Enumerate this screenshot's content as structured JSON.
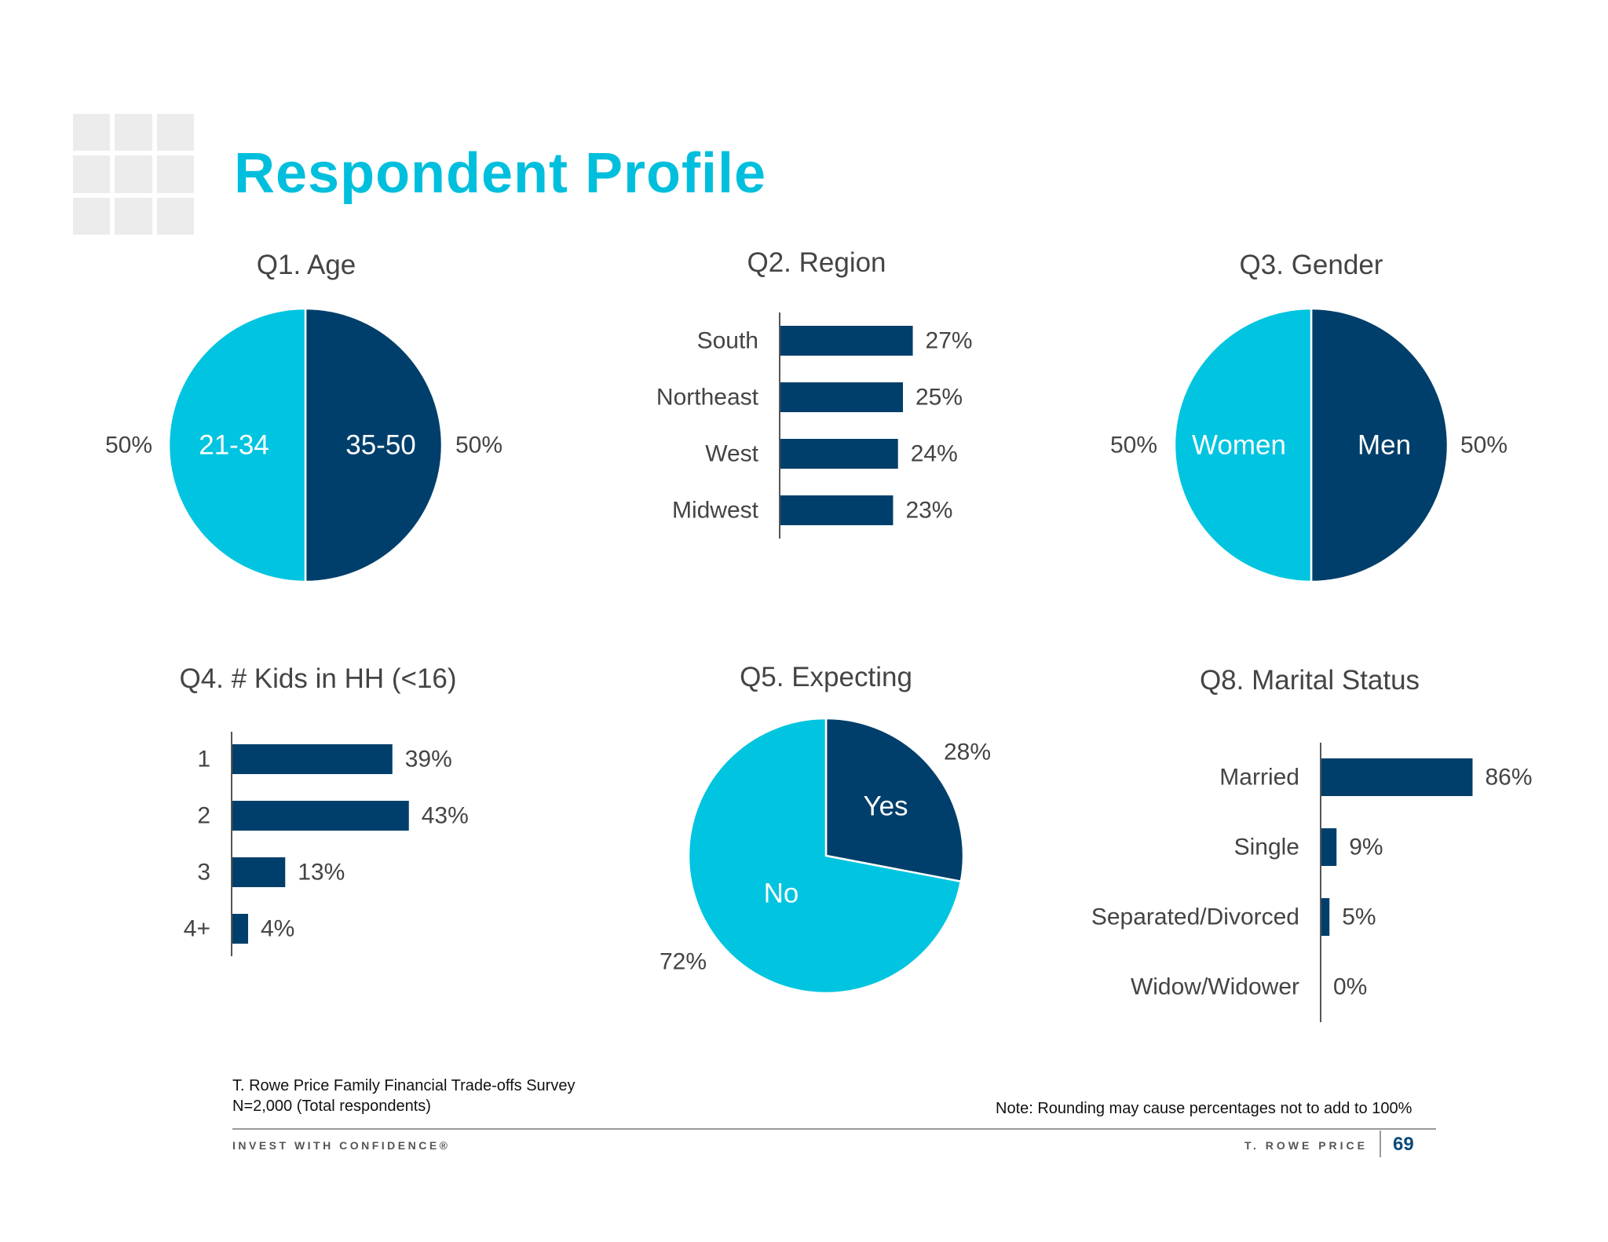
{
  "header": {
    "title": "Respondent Profile"
  },
  "colors": {
    "light": "#00c4e0",
    "dark": "#003f6b",
    "title": "#00bfdd"
  },
  "chart_data": [
    {
      "id": "q1",
      "type": "pie",
      "title": "Q1. Age",
      "slices": [
        {
          "label": "35-50",
          "value": 50,
          "value_label": "50%",
          "color": "#003f6b"
        },
        {
          "label": "21-34",
          "value": 50,
          "value_label": "50%",
          "color": "#00c4e0"
        }
      ]
    },
    {
      "id": "q2",
      "type": "bar",
      "orientation": "horizontal",
      "title": "Q2. Region",
      "categories": [
        "South",
        "Northeast",
        "West",
        "Midwest"
      ],
      "values": [
        27,
        25,
        24,
        23
      ],
      "value_labels": [
        "27%",
        "25%",
        "24%",
        "23%"
      ],
      "xlim": [
        0,
        100
      ],
      "grid": false
    },
    {
      "id": "q3",
      "type": "pie",
      "title": "Q3. Gender",
      "slices": [
        {
          "label": "Men",
          "value": 50,
          "value_label": "50%",
          "color": "#003f6b"
        },
        {
          "label": "Women",
          "value": 50,
          "value_label": "50%",
          "color": "#00c4e0"
        }
      ]
    },
    {
      "id": "q4",
      "type": "bar",
      "orientation": "horizontal",
      "title": "Q4. # Kids in HH (<16)",
      "categories": [
        "1",
        "2",
        "3",
        "4+"
      ],
      "values": [
        39,
        43,
        13,
        4
      ],
      "value_labels": [
        "39%",
        "43%",
        "13%",
        "4%"
      ],
      "xlim": [
        0,
        100
      ],
      "grid": false
    },
    {
      "id": "q5",
      "type": "pie",
      "title": "Q5. Expecting",
      "slices": [
        {
          "label": "Yes",
          "value": 28,
          "value_label": "28%",
          "color": "#003f6b"
        },
        {
          "label": "No",
          "value": 72,
          "value_label": "72%",
          "color": "#00c4e0"
        }
      ]
    },
    {
      "id": "q8",
      "type": "bar",
      "orientation": "horizontal",
      "title": "Q8. Marital Status",
      "categories": [
        "Married",
        "Single",
        "Separated/Divorced",
        "Widow/Widower"
      ],
      "values": [
        86,
        9,
        5,
        0
      ],
      "value_labels": [
        "86%",
        "9%",
        "5%",
        "0%"
      ],
      "xlim": [
        0,
        100
      ],
      "grid": false
    }
  ],
  "footer": {
    "source": "T. Rowe Price Family Financial Trade-offs Survey",
    "sample": "N=2,000 (Total respondents)",
    "note": "Note: Rounding may cause percentages not to add to 100%",
    "tagline": "INVEST WITH CONFIDENCE®",
    "brand": "T. ROWE PRICE",
    "page_number": "69"
  }
}
